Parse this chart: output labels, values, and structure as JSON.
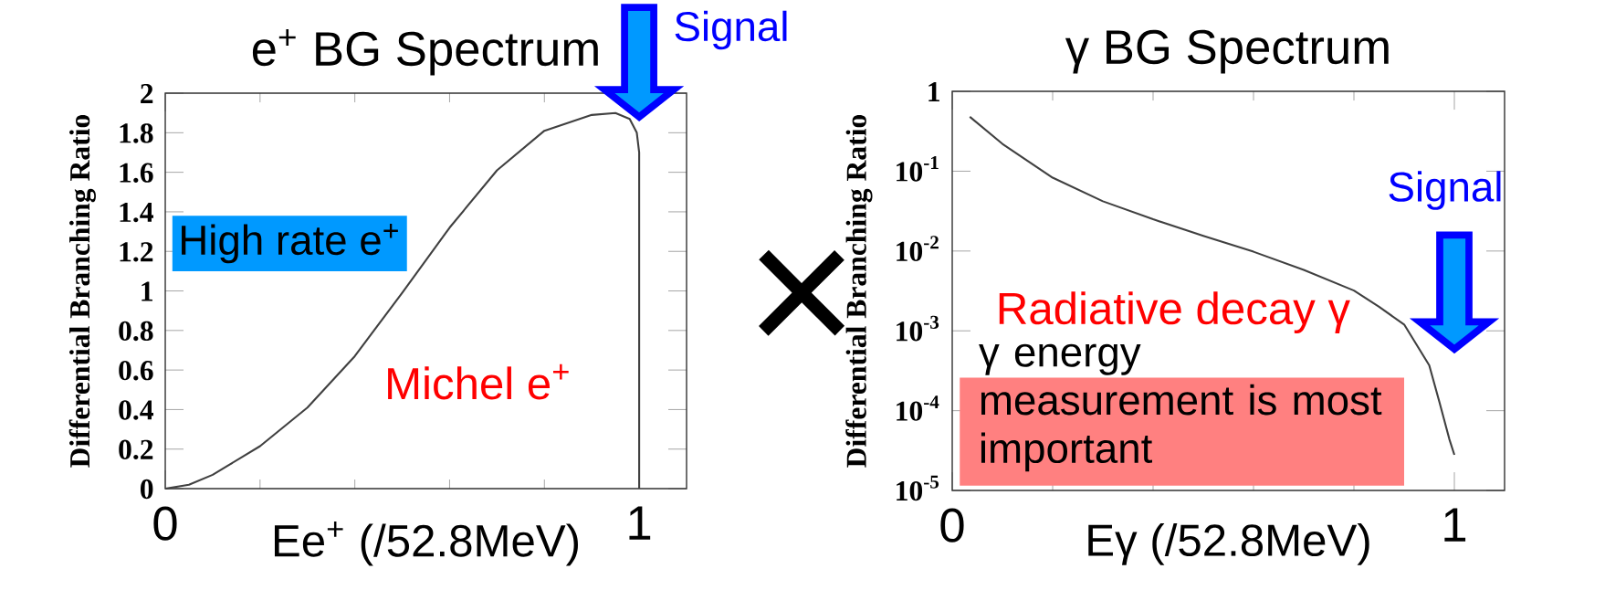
{
  "chart_data": [
    {
      "type": "line",
      "title": "e$^{+}$ BG Spectrum",
      "xlabel": "Ee$^{+}$ (/52.8MeV)",
      "ylabel": "Differential Branching Ratio",
      "color": "#404040",
      "x": [
        0,
        0.05,
        0.1,
        0.2,
        0.3,
        0.4,
        0.5,
        0.6,
        0.7,
        0.8,
        0.9,
        0.95,
        0.98,
        0.995,
        1.0,
        1.0
      ],
      "values": [
        0,
        0.02,
        0.07,
        0.215,
        0.41,
        0.67,
        0.99,
        1.32,
        1.61,
        1.81,
        1.89,
        1.9,
        1.87,
        1.8,
        1.7,
        0
      ],
      "xlim": [
        0,
        1.1
      ],
      "ylim": [
        0,
        2
      ],
      "xticks": [
        0,
        1
      ],
      "yticks": [
        0,
        0.2,
        0.4,
        0.6,
        0.8,
        1,
        1.2,
        1.4,
        1.6,
        1.8,
        2
      ],
      "annotations": [
        "Signal",
        "High rate e$^{+}$",
        "Michel e$^{+}$"
      ]
    },
    {
      "type": "line",
      "title": "γ BG Spectrum",
      "xlabel": "Eγ (/52.8MeV)",
      "ylabel": "Differential Branching Ratio",
      "color": "#404040",
      "log": true,
      "x": [
        0.035,
        0.1,
        0.2,
        0.3,
        0.4,
        0.5,
        0.6,
        0.7,
        0.8,
        0.85,
        0.9,
        0.95,
        0.97,
        0.99,
        1.0
      ],
      "values": [
        0.48,
        0.22,
        0.083,
        0.042,
        0.025,
        0.0155,
        0.0098,
        0.0058,
        0.0032,
        0.002,
        0.0012,
        0.00037,
        0.00013,
        4.4e-05,
        2.8e-05
      ],
      "xlim": [
        0,
        1.1
      ],
      "ylim": [
        1e-05,
        1
      ],
      "xticks": [
        0,
        1
      ],
      "yticks": [
        {
          "value": 1e-05,
          "label": "10$^{-5}$"
        },
        {
          "value": 0.0001,
          "label": "10$^{-4}$"
        },
        {
          "value": 0.001,
          "label": "10$^{-3}$"
        },
        {
          "value": 0.01,
          "label": "10$^{-2}$"
        },
        {
          "value": 0.1,
          "label": "10$^{-1}$"
        },
        1
      ],
      "annotations": [
        "Signal",
        "Radiative decay γ",
        "γ energy measurement is most important",
        "×"
      ]
    }
  ]
}
